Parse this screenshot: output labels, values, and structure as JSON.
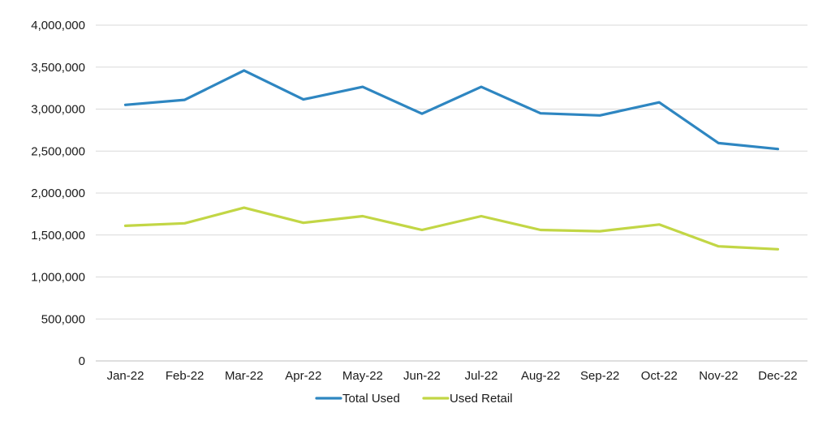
{
  "chart_data": {
    "type": "line",
    "title": "",
    "xlabel": "",
    "ylabel": "",
    "categories": [
      "Jan-22",
      "Feb-22",
      "Mar-22",
      "Apr-22",
      "May-22",
      "Jun-22",
      "Jul-22",
      "Aug-22",
      "Sep-22",
      "Oct-22",
      "Nov-22",
      "Dec-22"
    ],
    "ylim": [
      0,
      4000000
    ],
    "yticks": [
      0,
      500000,
      1000000,
      1500000,
      2000000,
      2500000,
      3000000,
      3500000,
      4000000
    ],
    "ytick_labels": [
      "0",
      "500,000",
      "1,000,000",
      "1,500,000",
      "2,000,000",
      "2,500,000",
      "3,000,000",
      "3,500,000",
      "4,000,000"
    ],
    "grid": true,
    "legend_position": "bottom",
    "series": [
      {
        "name": "Total Used",
        "color": "#2e86c1",
        "values": [
          3050000,
          3110000,
          3460000,
          3115000,
          3265000,
          2945000,
          3265000,
          2950000,
          2925000,
          3080000,
          2595000,
          2525000
        ]
      },
      {
        "name": "Used Retail",
        "color": "#c2d645",
        "values": [
          1610000,
          1640000,
          1825000,
          1645000,
          1725000,
          1560000,
          1725000,
          1560000,
          1545000,
          1625000,
          1365000,
          1330000
        ]
      }
    ]
  }
}
